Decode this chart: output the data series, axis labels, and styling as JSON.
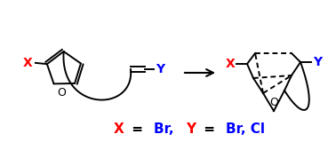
{
  "bg_color": "#ffffff",
  "red_color": "#ff0000",
  "blue_color": "#0000ff",
  "black_color": "#000000",
  "figsize": [
    3.78,
    1.6
  ],
  "dpi": 100,
  "lw": 1.4,
  "label_parts": [
    [
      "X",
      "red"
    ],
    [
      " = ",
      "black"
    ],
    [
      "Br, ",
      "blue"
    ],
    [
      "Y",
      "red"
    ],
    [
      " = ",
      "black"
    ],
    [
      "Br, Cl",
      "blue"
    ]
  ]
}
